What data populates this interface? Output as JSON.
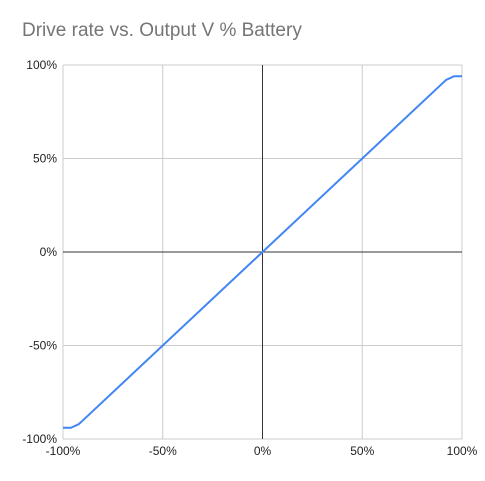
{
  "chart_data": {
    "type": "line",
    "title": "Drive rate vs. Output V % Battery",
    "xlabel": "",
    "ylabel": "",
    "xlim": [
      -100,
      100
    ],
    "ylim": [
      -100,
      100
    ],
    "x_ticks": [
      -100,
      -50,
      0,
      50,
      100
    ],
    "y_ticks": [
      -100,
      -50,
      0,
      50,
      100
    ],
    "x_tick_labels": [
      "-100%",
      "-50%",
      "0%",
      "50%",
      "100%"
    ],
    "y_tick_labels": [
      "-100%",
      "-50%",
      "0%",
      "50%",
      "100%"
    ],
    "grid": true,
    "legend": "none",
    "series": [
      {
        "x": [
          -100,
          -96,
          -92,
          -90,
          90,
          92,
          96,
          100
        ],
        "y": [
          -94,
          -94,
          -92,
          -90,
          90,
          92,
          94,
          94
        ],
        "color": "#4285f4"
      }
    ]
  }
}
